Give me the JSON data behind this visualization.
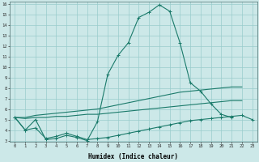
{
  "x": [
    0,
    1,
    2,
    3,
    4,
    5,
    6,
    7,
    8,
    9,
    10,
    11,
    12,
    13,
    14,
    15,
    16,
    17,
    18,
    19,
    20,
    21,
    22,
    23
  ],
  "line_top": [
    5.2,
    4.0,
    5.0,
    3.1,
    3.2,
    3.5,
    3.3,
    3.0,
    4.8,
    9.3,
    11.1,
    12.3,
    14.7,
    15.2,
    15.9,
    15.3,
    12.3,
    8.5,
    7.7,
    6.5,
    5.5,
    5.2,
    null,
    null
  ],
  "line_mid_upper": [
    5.2,
    5.2,
    5.4,
    5.5,
    5.6,
    5.7,
    5.8,
    5.9,
    6.0,
    6.2,
    6.4,
    6.6,
    6.8,
    7.0,
    7.2,
    7.4,
    7.6,
    7.7,
    7.8,
    7.9,
    8.0,
    8.1,
    8.1,
    null
  ],
  "line_mid_lower": [
    5.2,
    5.1,
    5.2,
    5.2,
    5.3,
    5.3,
    5.4,
    5.5,
    5.5,
    5.6,
    5.7,
    5.8,
    5.9,
    6.0,
    6.1,
    6.2,
    6.3,
    6.4,
    6.5,
    6.6,
    6.7,
    6.8,
    6.8,
    null
  ],
  "line_bot": [
    5.2,
    4.0,
    4.2,
    3.2,
    3.4,
    3.7,
    3.4,
    3.1,
    3.2,
    3.3,
    3.5,
    3.7,
    3.9,
    4.1,
    4.3,
    4.5,
    4.7,
    4.9,
    5.0,
    5.1,
    5.2,
    5.3,
    5.4,
    5.0
  ],
  "color": "#1a7a6a",
  "bg_color": "#cce8e8",
  "grid_color": "#99cccc",
  "xlabel": "Humidex (Indice chaleur)",
  "ylim": [
    3,
    16
  ],
  "xlim": [
    -0.5,
    23.5
  ],
  "yticks": [
    3,
    4,
    5,
    6,
    7,
    8,
    9,
    10,
    11,
    12,
    13,
    14,
    15,
    16
  ],
  "xticks": [
    0,
    1,
    2,
    3,
    4,
    5,
    6,
    7,
    8,
    9,
    10,
    11,
    12,
    13,
    14,
    15,
    16,
    17,
    18,
    19,
    20,
    21,
    22,
    23
  ]
}
